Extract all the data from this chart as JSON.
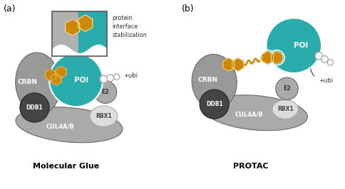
{
  "title_a": "Molecular Glue",
  "title_b": "PROTAC",
  "label_a": "(a)",
  "label_b": "(b)",
  "poi_color": "#2aacac",
  "crbn_color": "#999999",
  "ddb1_color": "#444444",
  "cul4_color": "#aaaaaa",
  "rbx1_color": "#dddddd",
  "e2_color": "#aaaaaa",
  "orange_drug": "#cc8800",
  "white": "#ffffff",
  "background": "#ffffff",
  "inset_teal": "#2aacac",
  "inset_gray": "#aaaaaa",
  "text_dark": "#222222",
  "border_gray": "#666666"
}
